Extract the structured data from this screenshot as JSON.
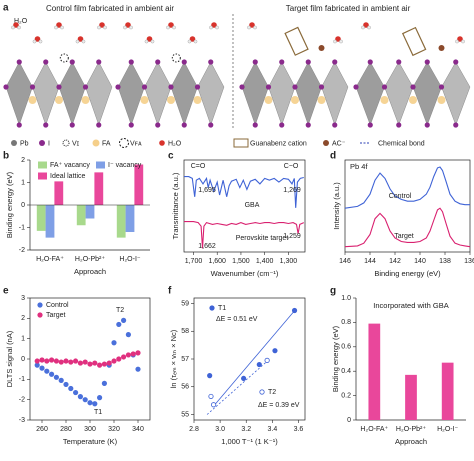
{
  "panel_a": {
    "panel": "a",
    "h2o": "H₂O",
    "titles": [
      "Control film fabricated in ambient air",
      "Target film fabricated in ambient air"
    ],
    "legend": [
      "Pb",
      "I",
      "Vɪ",
      "FA",
      "Vꜰᴀ",
      "H₂O",
      "Guanabenz cation",
      "AC⁻",
      "Chemical bond"
    ]
  },
  "chart_data": [
    {
      "type": "bar",
      "panel": "b",
      "ylabel": "Binding energy (eV)",
      "xlabel": "Approach",
      "legend": "upper left",
      "categories": [
        "H₂O-FA⁺",
        "H₂O-Pb²⁺",
        "H₂O-I⁻"
      ],
      "series": [
        {
          "name": "FA⁺ vacancy",
          "color": "#a8d98c",
          "values": [
            -1.15,
            -0.9,
            -1.45
          ]
        },
        {
          "name": "I⁻ vacancy",
          "color": "#7f9fe6",
          "values": [
            -1.45,
            -0.6,
            -1.2
          ]
        },
        {
          "name": "Ideal lattice",
          "color": "#e9479b",
          "values": [
            1.05,
            1.45,
            1.8
          ]
        }
      ],
      "ylim": [
        -2,
        2
      ],
      "yticks": [
        -2,
        -1,
        0,
        1,
        2
      ]
    },
    {
      "type": "line",
      "panel": "c",
      "ylabel": "Transmittance (a.u.)",
      "xlabel": "Wavenumber (cm⁻¹)",
      "annotations": [
        "C=O",
        "C−O",
        "1,695",
        "1,269",
        "1,662",
        "1,259"
      ],
      "series": [
        {
          "name": "GBA",
          "color": "#3f63d6",
          "x": [
            1740,
            1720,
            1705,
            1695,
            1688,
            1675,
            1660,
            1645,
            1638,
            1630,
            1615,
            1600,
            1590,
            1575,
            1560,
            1550,
            1540,
            1520,
            1505,
            1490,
            1475,
            1460,
            1440,
            1420,
            1400,
            1380,
            1360,
            1340,
            1320,
            1300,
            1285,
            1275,
            1269,
            1262,
            1250,
            1235
          ],
          "values": [
            0.82,
            0.82,
            0.8,
            0.6,
            0.78,
            0.8,
            0.74,
            0.8,
            0.7,
            0.78,
            0.66,
            0.76,
            0.62,
            0.78,
            0.6,
            0.72,
            0.77,
            0.79,
            0.7,
            0.78,
            0.68,
            0.77,
            0.79,
            0.74,
            0.8,
            0.78,
            0.8,
            0.76,
            0.8,
            0.79,
            0.74,
            0.8,
            0.48,
            0.76,
            0.8,
            0.81
          ]
        },
        {
          "name": "Perovskite target",
          "color": "#d9206f",
          "x": [
            1740,
            1700,
            1680,
            1668,
            1662,
            1656,
            1645,
            1620,
            1600,
            1580,
            1560,
            1540,
            1520,
            1500,
            1480,
            1460,
            1440,
            1420,
            1400,
            1380,
            1360,
            1340,
            1320,
            1300,
            1280,
            1266,
            1259,
            1252,
            1235
          ],
          "values": [
            0.33,
            0.33,
            0.32,
            0.28,
            0.04,
            0.28,
            0.32,
            0.3,
            0.31,
            0.3,
            0.29,
            0.31,
            0.3,
            0.32,
            0.3,
            0.31,
            0.32,
            0.31,
            0.32,
            0.32,
            0.31,
            0.32,
            0.32,
            0.31,
            0.32,
            0.3,
            0.2,
            0.3,
            0.32
          ]
        }
      ],
      "xlim": [
        1740,
        1230
      ],
      "xticks": [
        {
          "value": 1700,
          "label": "1,700"
        },
        {
          "value": 1600,
          "label": "1,600"
        },
        {
          "value": 1500,
          "label": "1,500"
        },
        {
          "value": 1400,
          "label": "1,400"
        },
        {
          "value": 1300,
          "label": "1,300"
        }
      ],
      "ylim": [
        0,
        1
      ]
    },
    {
      "type": "line",
      "panel": "d",
      "title": "Pb 4f",
      "ylabel": "Intensity (a.u.)",
      "xlabel": "Binding energy (eV)",
      "series": [
        {
          "name": "Control",
          "color": "#3f63d6",
          "x": [
            146,
            145,
            144.5,
            144,
            143.6,
            143.2,
            142.8,
            142.4,
            142,
            141.5,
            141,
            140.5,
            140,
            139.5,
            139.2,
            138.9,
            138.6,
            138.4,
            138.2,
            137.9,
            137.6,
            137.2,
            136.8,
            136.4,
            136
          ],
          "values": [
            0.5,
            0.52,
            0.56,
            0.66,
            0.82,
            0.9,
            0.84,
            0.72,
            0.64,
            0.6,
            0.58,
            0.58,
            0.6,
            0.66,
            0.74,
            0.86,
            0.96,
            0.97,
            0.93,
            0.8,
            0.66,
            0.58,
            0.55,
            0.54,
            0.54
          ]
        },
        {
          "name": "Target",
          "color": "#d9206f",
          "x": [
            146,
            145,
            144.5,
            144,
            143.6,
            143.2,
            142.8,
            142.4,
            142,
            141.5,
            141,
            140.5,
            140,
            139.5,
            139.2,
            138.9,
            138.6,
            138.4,
            138.2,
            137.9,
            137.6,
            137.2,
            136.8,
            136.4,
            136
          ],
          "values": [
            0.06,
            0.07,
            0.1,
            0.2,
            0.38,
            0.44,
            0.38,
            0.24,
            0.16,
            0.12,
            0.11,
            0.11,
            0.12,
            0.16,
            0.24,
            0.36,
            0.48,
            0.5,
            0.46,
            0.32,
            0.18,
            0.1,
            0.08,
            0.07,
            0.06
          ]
        }
      ],
      "xlim": [
        146,
        136
      ],
      "xticks": [
        146,
        144,
        142,
        140,
        138,
        136
      ],
      "ylim": [
        0,
        1.05
      ]
    },
    {
      "type": "scatter",
      "panel": "e",
      "ylabel": "DLTS signal (nA)",
      "xlabel": "Temperature (K)",
      "legend": "upper left",
      "annotations": [
        "T1",
        "T2"
      ],
      "series": [
        {
          "name": "Control",
          "color": "#4a70db",
          "x": [
            256,
            260,
            264,
            268,
            272,
            276,
            280,
            284,
            288,
            292,
            296,
            300,
            304,
            308,
            312,
            316,
            320,
            324,
            328,
            332,
            336,
            340
          ],
          "values": [
            -0.3,
            -0.45,
            -0.6,
            -0.75,
            -0.9,
            -1.05,
            -1.25,
            -1.45,
            -1.65,
            -1.85,
            -2.0,
            -2.15,
            -2.2,
            -1.9,
            -1.2,
            -0.3,
            0.8,
            1.7,
            1.9,
            1.2,
            0.2,
            -0.5
          ]
        },
        {
          "name": "Target",
          "color": "#e0307f",
          "x": [
            256,
            260,
            264,
            268,
            272,
            276,
            280,
            284,
            288,
            292,
            296,
            300,
            304,
            308,
            312,
            316,
            320,
            324,
            328,
            332,
            336,
            340
          ],
          "values": [
            -0.1,
            -0.05,
            -0.1,
            -0.05,
            -0.1,
            -0.15,
            -0.1,
            -0.15,
            -0.1,
            -0.2,
            -0.15,
            -0.25,
            -0.2,
            -0.3,
            -0.25,
            -0.2,
            -0.1,
            0,
            0.1,
            0.2,
            0.25,
            0.3
          ]
        }
      ],
      "xlim": [
        250,
        350
      ],
      "xticks": [
        260,
        280,
        300,
        320,
        340
      ],
      "ylim": [
        -3,
        3
      ],
      "yticks": [
        -3,
        -2,
        -1,
        0,
        1,
        2,
        3
      ]
    },
    {
      "type": "scatter",
      "panel": "f",
      "ylabel": "ln (τₑₘ × vₜₕ × Nc)",
      "xlabel": "1,000 T⁻¹ (1 K⁻¹)",
      "annotations": [
        "ΔE = 0.51 eV",
        "ΔE = 0.39 eV"
      ],
      "series": [
        {
          "name": "T1",
          "color": "#3f63d6",
          "open": false,
          "x": [
            2.92,
            3.18,
            3.3,
            3.42,
            3.57
          ],
          "values": [
            56.4,
            56.3,
            56.8,
            57.3,
            58.75
          ]
        },
        {
          "name": "T2",
          "color": "#3f63d6",
          "open": true,
          "x": [
            2.93,
            2.95,
            3.36
          ],
          "values": [
            55.65,
            55.35,
            56.95
          ]
        }
      ],
      "fit_lines": [
        {
          "color": "#3f63d6",
          "dash": false,
          "x": [
            2.95,
            3.58
          ],
          "values": [
            55.3,
            58.8
          ]
        },
        {
          "color": "#3f63d6",
          "dash": true,
          "x": [
            2.9,
            3.38
          ],
          "values": [
            55.0,
            57.0
          ]
        }
      ],
      "xlim": [
        2.8,
        3.65
      ],
      "xticks": [
        2.8,
        {
          "value": 3,
          "label": "3.0"
        },
        3.2,
        3.4,
        3.6
      ],
      "ylim": [
        54.8,
        59.2
      ],
      "yticks": [
        55,
        56,
        57,
        58,
        59
      ]
    },
    {
      "type": "bar",
      "panel": "g",
      "title": "Incorporated with GBA",
      "ylabel": "Binding energy (eV)",
      "xlabel": "Approach",
      "categories": [
        "H₂O-FA⁺",
        "H₂O-Pb²⁺",
        "H₂O-I⁻"
      ],
      "values": [
        0.79,
        0.37,
        0.47
      ],
      "color": "#e9479b",
      "ylim": [
        0,
        1
      ],
      "yticks": [
        0,
        0.2,
        0.4,
        0.6,
        0.8,
        {
          "value": 1,
          "label": "1.0"
        }
      ]
    }
  ]
}
